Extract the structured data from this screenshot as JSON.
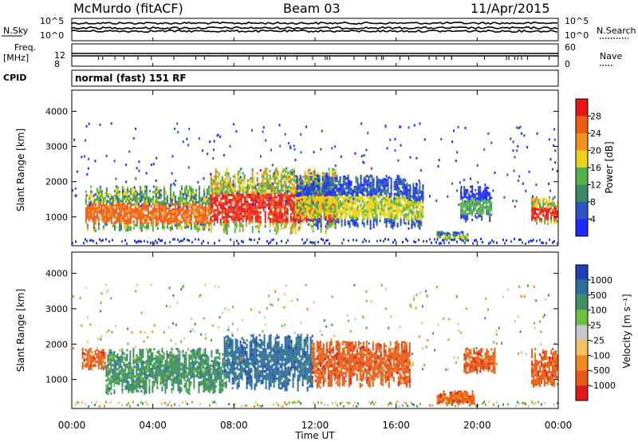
{
  "header": {
    "station": "McMurdo (fitACF)",
    "beam": "Beam 03",
    "date": "11/Apr/2015"
  },
  "strips": {
    "nsky_label": "N.Sky",
    "nsky_ticks": [
      "10^5",
      "10^0"
    ],
    "nsearch_label": "N.Search",
    "nsearch_ticks": [
      "10^5",
      "10^0"
    ],
    "freq_label_1": "Freq.",
    "freq_label_2": "[MHz]",
    "freq_ticks": [
      "12",
      "8"
    ],
    "nave_label": "Nave",
    "nave_ticks": [
      "60",
      "0"
    ],
    "cpid_label": "CPID",
    "cpid_value": "normal (fast) 151 RF"
  },
  "chart_data": [
    {
      "type": "heatmap",
      "panel": "power",
      "ylabel": "Slant Range [km]",
      "xlim_hours": [
        0,
        24
      ],
      "ylim": [
        180,
        4600
      ],
      "y_ticks": [
        1000,
        2000,
        3000,
        4000
      ],
      "colorbar": {
        "label": "Power [dB]",
        "ticks": [
          "4",
          "8",
          "12",
          "16",
          "20",
          "24",
          "28"
        ],
        "colors": [
          "#1d2bff",
          "#2a54c8",
          "#3a8a6a",
          "#55b24a",
          "#ecd21a",
          "#f4901e",
          "#f05a14",
          "#e8161a"
        ]
      },
      "echo_regions": [
        {
          "start": "00:40",
          "end": "06:50",
          "range_km": [
            600,
            1900
          ],
          "peak_db": 24
        },
        {
          "start": "06:50",
          "end": "13:00",
          "range_km": [
            550,
            2400
          ],
          "peak_db": 28
        },
        {
          "start": "11:00",
          "end": "16:30",
          "range_km": [
            700,
            2200
          ],
          "peak_db": 16
        },
        {
          "start": "16:30",
          "end": "17:20",
          "range_km": [
            700,
            2000
          ],
          "peak_db": 16
        },
        {
          "start": "18:00",
          "end": "19:30",
          "range_km": [
            350,
            600
          ],
          "peak_db": 14
        },
        {
          "start": "19:10",
          "end": "20:40",
          "range_km": [
            900,
            1900
          ],
          "peak_db": 10
        },
        {
          "start": "22:40",
          "end": "24:00",
          "range_km": [
            800,
            1600
          ],
          "peak_db": 28
        }
      ]
    },
    {
      "type": "heatmap",
      "panel": "velocity",
      "xlabel": "Time UT",
      "ylabel": "Slant Range [km]",
      "xlim_hours": [
        0,
        24
      ],
      "ylim": [
        180,
        4600
      ],
      "x_ticks": [
        "00:00",
        "04:00",
        "08:00",
        "12:00",
        "16:00",
        "20:00",
        "00:00"
      ],
      "y_ticks": [
        1000,
        2000,
        3000,
        4000
      ],
      "colorbar": {
        "label": "Velocity [m s⁻¹]",
        "ticks": [
          "1000",
          "500",
          "100",
          "25",
          "-25",
          "-100",
          "-500",
          "-1000"
        ],
        "colors": [
          "#2040b8",
          "#2d6e9c",
          "#3f9060",
          "#70c040",
          "#c8c8c8",
          "#f4c060",
          "#f08a20",
          "#e85a14",
          "#e01818"
        ]
      },
      "echo_regions": [
        {
          "start": "00:30",
          "end": "01:40",
          "range_km": [
            1300,
            1900
          ],
          "velocity": -500
        },
        {
          "start": "01:40",
          "end": "07:30",
          "range_km": [
            600,
            1900
          ],
          "velocity": 100
        },
        {
          "start": "07:30",
          "end": "11:50",
          "range_km": [
            700,
            2300
          ],
          "velocity": 500
        },
        {
          "start": "11:50",
          "end": "16:40",
          "range_km": [
            800,
            2100
          ],
          "velocity": -500
        },
        {
          "start": "18:00",
          "end": "19:50",
          "range_km": [
            300,
            700
          ],
          "velocity": -500
        },
        {
          "start": "19:20",
          "end": "20:50",
          "range_km": [
            1200,
            1900
          ],
          "velocity": -500
        },
        {
          "start": "22:40",
          "end": "24:00",
          "range_km": [
            800,
            1900
          ],
          "velocity": -500
        }
      ]
    }
  ]
}
